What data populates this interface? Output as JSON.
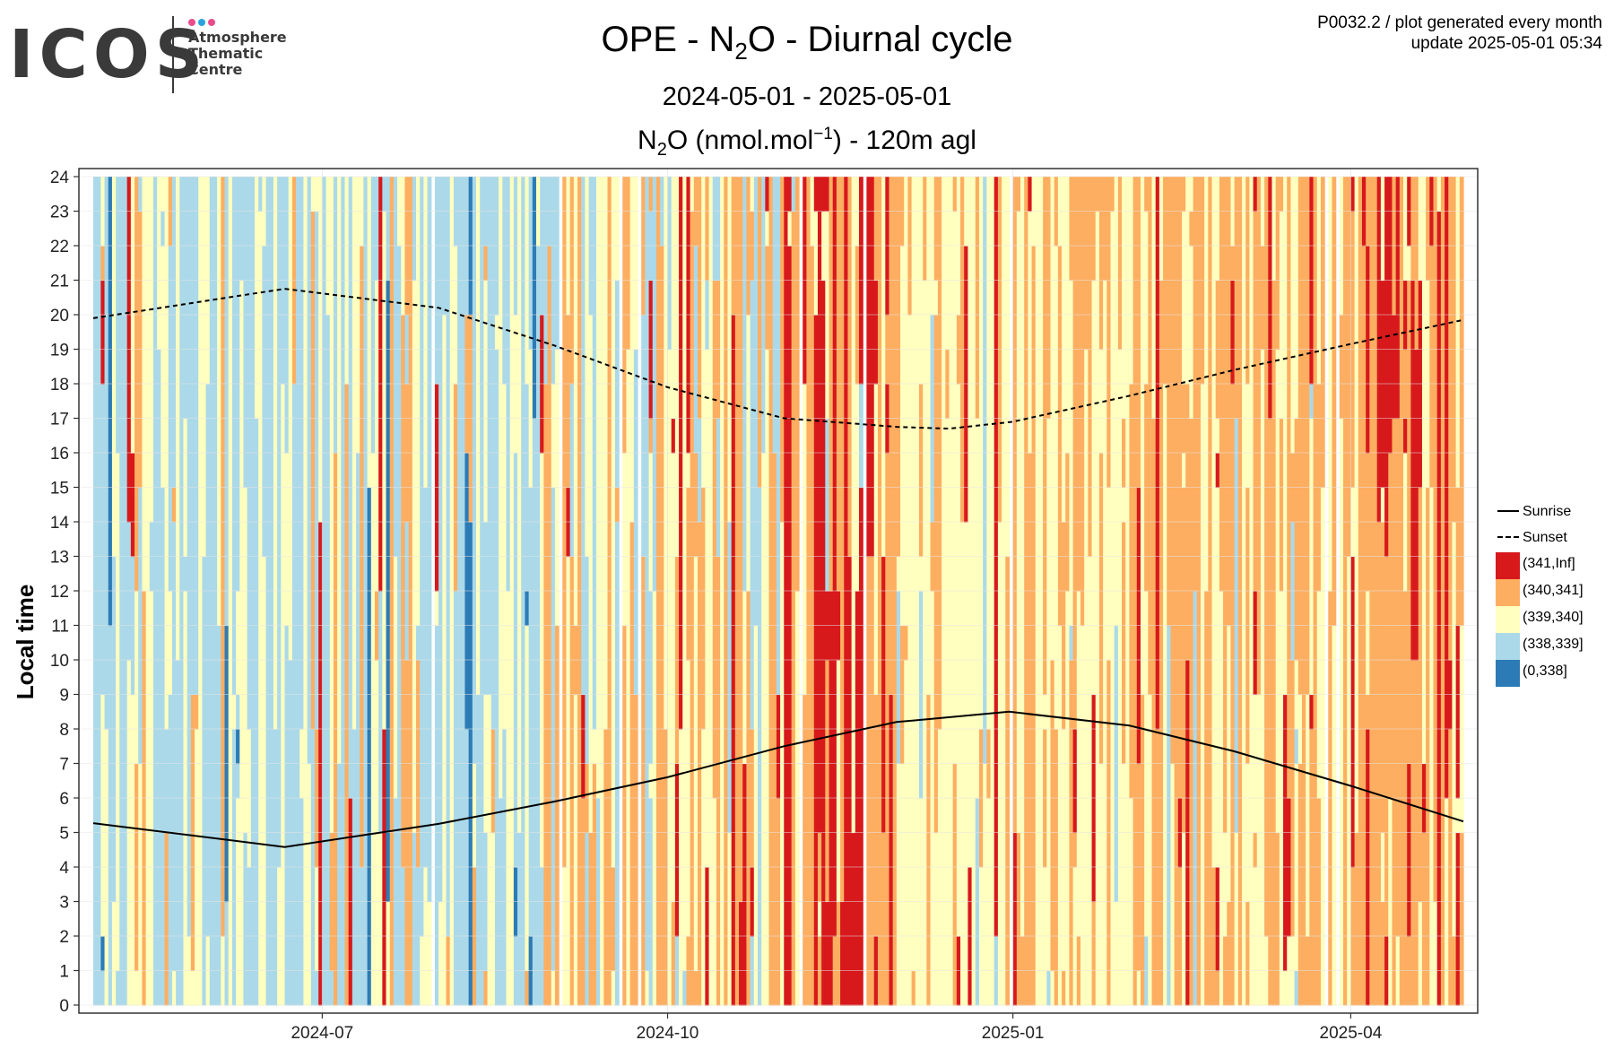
{
  "header": {
    "logo_text": "ICOS",
    "logo_subtitle": [
      "Atmosphere",
      "Thematic",
      "Centre"
    ],
    "logo_dot_colors": [
      "#e84c8b",
      "#2aa3dc",
      "#e84c8b"
    ],
    "meta_line1": "P0032.2 / plot generated every month",
    "meta_line2": "update  2025-05-01 05:34"
  },
  "chart_data": {
    "type": "heatmap",
    "title": {
      "pre": "OPE - N",
      "sub": "2",
      "post": "O - Diurnal cycle"
    },
    "subtitle": "2024-05-01 - 2025-05-01",
    "measurement": {
      "pre": "N",
      "sub": "2",
      "mid": "O (nmol.mol",
      "sup": "−1",
      "post": ") - 120m agl"
    },
    "ylabel": "Local time",
    "xlabel": "",
    "x_range": [
      "2024-05-01",
      "2025-05-01"
    ],
    "x_ticks": [
      "2024-07",
      "2024-10",
      "2025-01",
      "2025-04"
    ],
    "x_tick_dates": [
      "2024-07-01",
      "2024-10-01",
      "2025-01-01",
      "2025-04-01"
    ],
    "y_range": [
      0,
      24
    ],
    "y_ticks": [
      0,
      1,
      2,
      3,
      4,
      5,
      6,
      7,
      8,
      9,
      10,
      11,
      12,
      13,
      14,
      15,
      16,
      17,
      18,
      19,
      20,
      21,
      22,
      23,
      24
    ],
    "grid": true,
    "legend_position": "right",
    "classes": [
      {
        "label": "(341,Inf]",
        "color": "#d7191c"
      },
      {
        "label": "(340,341]",
        "color": "#fdae61"
      },
      {
        "label": "(339,340]",
        "color": "#ffffbf"
      },
      {
        "label": "(338,339]",
        "color": "#abd9e9"
      },
      {
        "label": "(0,338]",
        "color": "#2c7bb6"
      }
    ],
    "lines": [
      {
        "name": "Sunrise",
        "style": "solid",
        "x": [
          "2024-05-01",
          "2024-06-21",
          "2024-08-01",
          "2024-09-01",
          "2024-10-01",
          "2024-11-01",
          "2024-12-01",
          "2024-12-31",
          "2025-02-01",
          "2025-03-01",
          "2025-04-01",
          "2025-05-01"
        ],
        "y": [
          5.27,
          4.58,
          5.25,
          5.9,
          6.6,
          7.5,
          8.2,
          8.5,
          8.1,
          7.35,
          6.35,
          5.32
        ]
      },
      {
        "name": "Sunset",
        "style": "dashed",
        "x": [
          "2024-05-01",
          "2024-06-21",
          "2024-08-01",
          "2024-09-01",
          "2024-10-01",
          "2024-11-01",
          "2024-12-01",
          "2024-12-15",
          "2025-01-01",
          "2025-02-01",
          "2025-03-01",
          "2025-04-01",
          "2025-05-01"
        ],
        "y": [
          19.9,
          20.75,
          20.2,
          19.1,
          17.9,
          17.0,
          16.75,
          16.7,
          16.9,
          17.65,
          18.4,
          19.15,
          19.85
        ]
      }
    ],
    "daily_dominant_class_summary": {
      "2024-05": "(338,339] and (339,340] dominate",
      "2024-06": "(338,339] dominates",
      "2024-07": "(338,339] and (339,340] mixed",
      "2024-08": "(338,339] with (0,338] streaks",
      "2024-09": "(339,340] and (340,341] mixed",
      "2024-10": "(340,341] and (339,340] mixed",
      "2024-11": "(341,Inf] and (340,341] dominate",
      "2024-12": "(339,340] dominates",
      "2025-01": "(339,340] and (340,341] mixed",
      "2025-02": "(340,341] dominates",
      "2025-03": "(340,341] and (339,340] mixed",
      "2025-04": "(340,341] with (341,Inf] late in month"
    }
  }
}
